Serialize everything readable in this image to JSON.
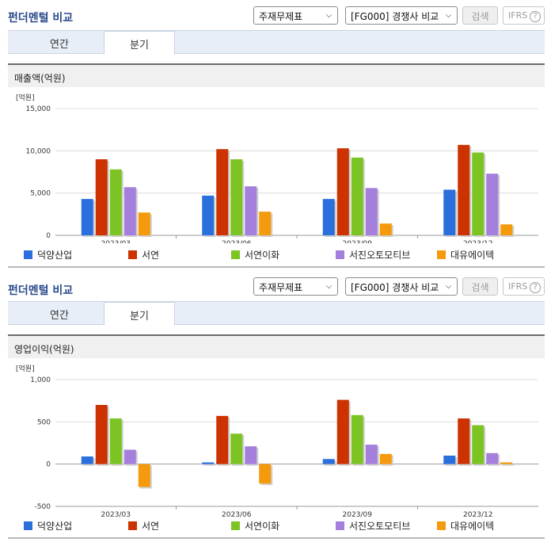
{
  "colors": {
    "title": "#2b4a8c"
  },
  "series_colors": [
    "#2a6fdb",
    "#cc3300",
    "#7cc424",
    "#a57fdc",
    "#f59a0c"
  ],
  "panels": [
    {
      "title": "펀더멘털 비교",
      "select_report": "주재무제표",
      "select_compare": "[FG000] 경쟁사 비교",
      "search_label": "검색",
      "ifrs_label": "IFRS",
      "help_icon": "?",
      "tabs": [
        "연간",
        "분기"
      ],
      "active_tab": 1,
      "section_title": "매출액(억원)"
    },
    {
      "title": "펀더멘털 비교",
      "select_report": "주재무제표",
      "select_compare": "[FG000] 경쟁사 비교",
      "search_label": "검색",
      "ifrs_label": "IFRS",
      "help_icon": "?",
      "tabs": [
        "연간",
        "분기"
      ],
      "active_tab": 1,
      "section_title": "영업이익(억원)"
    }
  ],
  "chart_data": [
    {
      "type": "bar",
      "title": "매출액(억원)",
      "unit_label": "[억원]",
      "categories": [
        "2023/03",
        "2023/06",
        "2023/09",
        "2023/12"
      ],
      "ylim": [
        0,
        15000
      ],
      "yticks": [
        0,
        5000,
        10000,
        15000
      ],
      "ytick_labels": [
        "0",
        "5,000",
        "10,000",
        "15,000"
      ],
      "grid": true,
      "legend_position": "bottom",
      "series": [
        {
          "name": "덕양산업",
          "values": [
            4300,
            4700,
            4300,
            5400
          ]
        },
        {
          "name": "서연",
          "values": [
            9000,
            10200,
            10300,
            10700
          ]
        },
        {
          "name": "서연이화",
          "values": [
            7800,
            9000,
            9200,
            9800
          ]
        },
        {
          "name": "서진오토모티브",
          "values": [
            5700,
            5800,
            5600,
            7300
          ]
        },
        {
          "name": "대유에이텍",
          "values": [
            2700,
            2800,
            1400,
            1300
          ]
        }
      ]
    },
    {
      "type": "bar",
      "title": "영업이익(억원)",
      "unit_label": "[억원]",
      "categories": [
        "2023/03",
        "2023/06",
        "2023/09",
        "2023/12"
      ],
      "ylim": [
        -500,
        1000
      ],
      "yticks": [
        -500,
        0,
        500,
        1000
      ],
      "ytick_labels": [
        "-500",
        "0",
        "500",
        "1,000"
      ],
      "grid": true,
      "legend_position": "bottom",
      "series": [
        {
          "name": "덕양산업",
          "values": [
            90,
            20,
            60,
            100
          ]
        },
        {
          "name": "서연",
          "values": [
            700,
            570,
            760,
            540
          ]
        },
        {
          "name": "서연이화",
          "values": [
            540,
            360,
            580,
            460
          ]
        },
        {
          "name": "서진오토모티브",
          "values": [
            170,
            210,
            230,
            130
          ]
        },
        {
          "name": "대유에이텍",
          "values": [
            -270,
            -230,
            120,
            20
          ]
        }
      ]
    }
  ]
}
